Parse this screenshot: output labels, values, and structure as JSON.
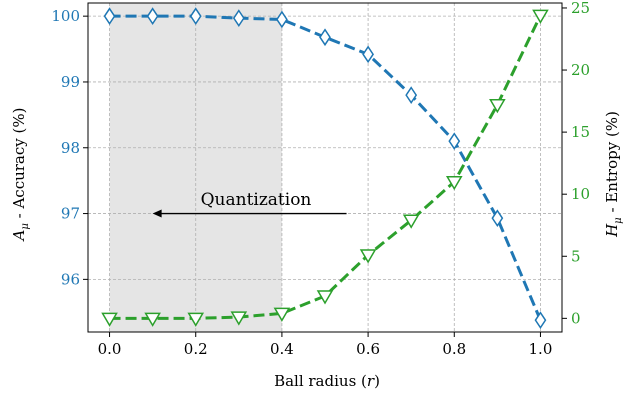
{
  "chart_data": {
    "type": "line",
    "xlabel": "Ball radius (r)",
    "xlabel_parts": [
      "Ball radius (",
      "r",
      ")"
    ],
    "x_ticks": [
      "0.0",
      "0.2",
      "0.4",
      "0.6",
      "0.8",
      "1.0"
    ],
    "xlim": [
      -0.05,
      1.05
    ],
    "left_axis": {
      "label": "A_μ - Accuracy (%)",
      "label_main": "A",
      "label_sub": "μ",
      "label_rest": " - Accuracy (%)",
      "ticks": [
        "96",
        "97",
        "98",
        "99",
        "100"
      ],
      "ylim": [
        95.2,
        100.2
      ],
      "color": "#1f77b4"
    },
    "right_axis": {
      "label": "H_μ - Entropy (%)",
      "label_main": "H",
      "label_sub": "μ",
      "label_rest": " - Entropy (%)",
      "ticks": [
        "0",
        "5",
        "10",
        "15",
        "20",
        "25"
      ],
      "ylim": [
        -1.1,
        25.4
      ],
      "color": "#2ca02c"
    },
    "grid": true,
    "shaded_region": {
      "x_start": 0.0,
      "x_end": 0.4,
      "color": "#e5e5e5"
    },
    "annotation": {
      "text": "Quantization",
      "arrow_from_x": 0.55,
      "arrow_to_x": 0.1,
      "y": 97.0
    },
    "x": [
      0.0,
      0.1,
      0.2,
      0.3,
      0.4,
      0.5,
      0.6,
      0.7,
      0.8,
      0.9,
      1.0
    ],
    "series": [
      {
        "name": "Accuracy",
        "axis": "left",
        "color": "#1f77b4",
        "marker": "diamond",
        "linestyle": "dashed",
        "values": [
          100.0,
          100.0,
          100.0,
          99.97,
          99.95,
          99.68,
          99.42,
          98.8,
          98.1,
          96.93,
          95.38
        ]
      },
      {
        "name": "Entropy",
        "axis": "right",
        "color": "#2ca02c",
        "marker": "triangle-down",
        "linestyle": "dashed",
        "values": [
          0.0,
          0.0,
          0.0,
          0.1,
          0.4,
          1.8,
          5.1,
          7.9,
          11.0,
          17.2,
          24.4
        ]
      }
    ]
  }
}
